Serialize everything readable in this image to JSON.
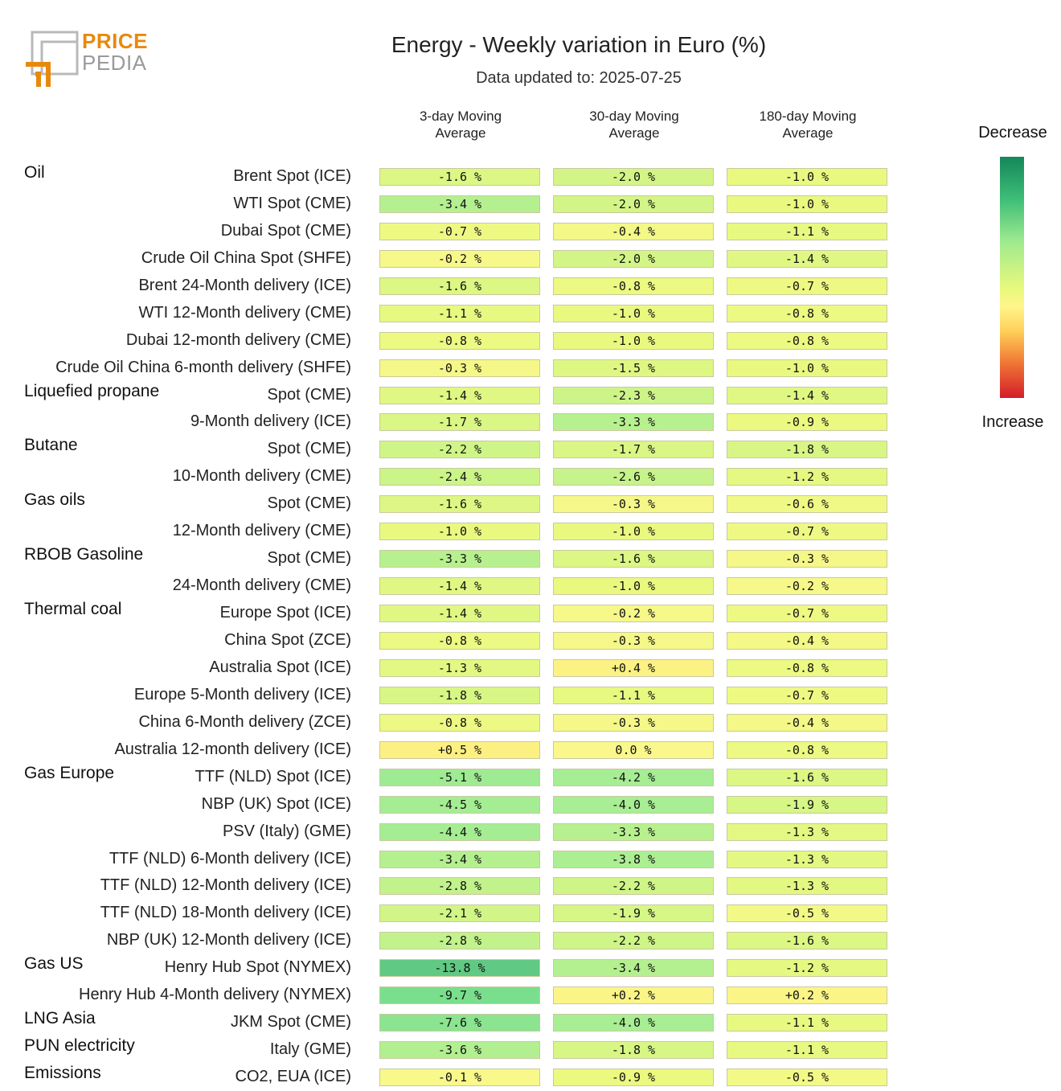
{
  "brand": {
    "line1": "PRICE",
    "line2": "PEDIA"
  },
  "chart_data": {
    "type": "table",
    "title": "Energy - Weekly variation in Euro (%)",
    "subtitle": "Data updated to: 2025-07-25",
    "columns": [
      {
        "l1": "3-day Moving",
        "l2": "Average"
      },
      {
        "l1": "30-day Moving",
        "l2": "Average"
      },
      {
        "l1": "180-day Moving",
        "l2": "Average"
      }
    ],
    "legend": {
      "top": "Decrease",
      "bottom": "Increase"
    },
    "colors": {
      "low": "#5fcf87",
      "mid": "#e9f97c",
      "high": "#fff58a",
      "strong": "#ffe57a"
    },
    "groups": [
      {
        "name": "Oil",
        "rows": [
          {
            "label": "Brent Spot (ICE)",
            "values": [
              -1.6,
              -2.0,
              -1.0
            ],
            "texts": [
              "-1.6 %",
              "-2.0 %",
              "-1.0 %"
            ]
          },
          {
            "label": "WTI Spot (CME)",
            "values": [
              -3.4,
              -2.0,
              -1.0
            ],
            "texts": [
              "-3.4 %",
              "-2.0 %",
              "-1.0 %"
            ]
          },
          {
            "label": "Dubai Spot (CME)",
            "values": [
              -0.7,
              -0.4,
              -1.1
            ],
            "texts": [
              "-0.7 %",
              "-0.4 %",
              "-1.1 %"
            ]
          },
          {
            "label": "Crude Oil China Spot (SHFE)",
            "values": [
              -0.2,
              -2.0,
              -1.4
            ],
            "texts": [
              "-0.2 %",
              "-2.0 %",
              "-1.4 %"
            ]
          },
          {
            "label": "Brent 24-Month delivery (ICE)",
            "values": [
              -1.6,
              -0.8,
              -0.7
            ],
            "texts": [
              "-1.6 %",
              "-0.8 %",
              "-0.7 %"
            ]
          },
          {
            "label": "WTI 12-Month delivery (CME)",
            "values": [
              -1.1,
              -1.0,
              -0.8
            ],
            "texts": [
              "-1.1 %",
              "-1.0 %",
              "-0.8 %"
            ]
          },
          {
            "label": "Dubai 12-month delivery (CME)",
            "values": [
              -0.8,
              -1.0,
              -0.8
            ],
            "texts": [
              "-0.8 %",
              "-1.0 %",
              "-0.8 %"
            ]
          },
          {
            "label": "Crude Oil China 6-month delivery (SHFE)",
            "values": [
              -0.3,
              -1.5,
              -1.0
            ],
            "texts": [
              "-0.3 %",
              "-1.5 %",
              "-1.0 %"
            ]
          }
        ]
      },
      {
        "name": "Liquefied propane",
        "rows": [
          {
            "label": "Spot (CME)",
            "values": [
              -1.4,
              -2.3,
              -1.4
            ],
            "texts": [
              "-1.4 %",
              "-2.3 %",
              "-1.4 %"
            ]
          },
          {
            "label": "9-Month delivery (ICE)",
            "values": [
              -1.7,
              -3.3,
              -0.9
            ],
            "texts": [
              "-1.7 %",
              "-3.3 %",
              "-0.9 %"
            ]
          }
        ]
      },
      {
        "name": "Butane",
        "rows": [
          {
            "label": "Spot (CME)",
            "values": [
              -2.2,
              -1.7,
              -1.8
            ],
            "texts": [
              "-2.2 %",
              "-1.7 %",
              "-1.8 %"
            ]
          },
          {
            "label": "10-Month delivery (CME)",
            "values": [
              -2.4,
              -2.6,
              -1.2
            ],
            "texts": [
              "-2.4 %",
              "-2.6 %",
              "-1.2 %"
            ]
          }
        ]
      },
      {
        "name": "Gas oils",
        "rows": [
          {
            "label": "Spot (CME)",
            "values": [
              -1.6,
              -0.3,
              -0.6
            ],
            "texts": [
              "-1.6 %",
              "-0.3 %",
              "-0.6 %"
            ]
          },
          {
            "label": "12-Month delivery (CME)",
            "values": [
              -1.0,
              -1.0,
              -0.7
            ],
            "texts": [
              "-1.0 %",
              "-1.0 %",
              "-0.7 %"
            ]
          }
        ]
      },
      {
        "name": "RBOB Gasoline",
        "rows": [
          {
            "label": "Spot (CME)",
            "values": [
              -3.3,
              -1.6,
              -0.3
            ],
            "texts": [
              "-3.3 %",
              "-1.6 %",
              "-0.3 %"
            ]
          },
          {
            "label": "24-Month delivery (CME)",
            "values": [
              -1.4,
              -1.0,
              -0.2
            ],
            "texts": [
              "-1.4 %",
              "-1.0 %",
              "-0.2 %"
            ]
          }
        ]
      },
      {
        "name": "Thermal coal",
        "rows": [
          {
            "label": "Europe Spot (ICE)",
            "values": [
              -1.4,
              -0.2,
              -0.7
            ],
            "texts": [
              "-1.4 %",
              "-0.2 %",
              "-0.7 %"
            ]
          },
          {
            "label": "China Spot (ZCE)",
            "values": [
              -0.8,
              -0.3,
              -0.4
            ],
            "texts": [
              "-0.8 %",
              "-0.3 %",
              "-0.4 %"
            ]
          },
          {
            "label": "Australia Spot (ICE)",
            "values": [
              -1.3,
              0.4,
              -0.8
            ],
            "texts": [
              "-1.3 %",
              "+0.4 %",
              "-0.8 %"
            ]
          },
          {
            "label": "Europe 5-Month delivery (ICE)",
            "values": [
              -1.8,
              -1.1,
              -0.7
            ],
            "texts": [
              "-1.8 %",
              "-1.1 %",
              "-0.7 %"
            ]
          },
          {
            "label": "China 6-Month delivery (ZCE)",
            "values": [
              -0.8,
              -0.3,
              -0.4
            ],
            "texts": [
              "-0.8 %",
              "-0.3 %",
              "-0.4 %"
            ]
          },
          {
            "label": "Australia 12-month delivery (ICE)",
            "values": [
              0.5,
              0.0,
              -0.8
            ],
            "texts": [
              "+0.5 %",
              "0.0 %",
              "-0.8 %"
            ]
          }
        ]
      },
      {
        "name": "Gas Europe",
        "rows": [
          {
            "label": "TTF (NLD) Spot (ICE)",
            "values": [
              -5.1,
              -4.2,
              -1.6
            ],
            "texts": [
              "-5.1 %",
              "-4.2 %",
              "-1.6 %"
            ]
          },
          {
            "label": "NBP (UK) Spot (ICE)",
            "values": [
              -4.5,
              -4.0,
              -1.9
            ],
            "texts": [
              "-4.5 %",
              "-4.0 %",
              "-1.9 %"
            ]
          },
          {
            "label": "PSV (Italy) (GME)",
            "values": [
              -4.4,
              -3.3,
              -1.3
            ],
            "texts": [
              "-4.4 %",
              "-3.3 %",
              "-1.3 %"
            ]
          },
          {
            "label": "TTF (NLD) 6-Month delivery (ICE)",
            "values": [
              -3.4,
              -3.8,
              -1.3
            ],
            "texts": [
              "-3.4 %",
              "-3.8 %",
              "-1.3 %"
            ]
          },
          {
            "label": "TTF (NLD) 12-Month delivery (ICE)",
            "values": [
              -2.8,
              -2.2,
              -1.3
            ],
            "texts": [
              "-2.8 %",
              "-2.2 %",
              "-1.3 %"
            ]
          },
          {
            "label": "TTF (NLD) 18-Month delivery (ICE)",
            "values": [
              -2.1,
              -1.9,
              -0.5
            ],
            "texts": [
              "-2.1 %",
              "-1.9 %",
              "-0.5 %"
            ]
          },
          {
            "label": "NBP (UK) 12-Month delivery (ICE)",
            "values": [
              -2.8,
              -2.2,
              -1.6
            ],
            "texts": [
              "-2.8 %",
              "-2.2 %",
              "-1.6 %"
            ]
          }
        ]
      },
      {
        "name": "Gas US",
        "rows": [
          {
            "label": "Henry Hub Spot (NYMEX)",
            "values": [
              -13.8,
              -3.4,
              -1.2
            ],
            "texts": [
              "-13.8 %",
              "-3.4 %",
              "-1.2 %"
            ]
          },
          {
            "label": "Henry Hub 4-Month delivery (NYMEX)",
            "values": [
              -9.7,
              0.2,
              0.2
            ],
            "texts": [
              "-9.7 %",
              "+0.2 %",
              "+0.2 %"
            ]
          }
        ]
      },
      {
        "name": "LNG Asia",
        "rows": [
          {
            "label": "JKM Spot (CME)",
            "values": [
              -7.6,
              -4.0,
              -1.1
            ],
            "texts": [
              "-7.6 %",
              "-4.0 %",
              "-1.1 %"
            ]
          }
        ]
      },
      {
        "name": "PUN electricity",
        "rows": [
          {
            "label": "Italy (GME)",
            "values": [
              -3.6,
              -1.8,
              -1.1
            ],
            "texts": [
              "-3.6 %",
              "-1.8 %",
              "-1.1 %"
            ]
          }
        ]
      },
      {
        "name": "Emissions",
        "rows": [
          {
            "label": "CO2, EUA (ICE)",
            "values": [
              -0.1,
              -0.9,
              -0.5
            ],
            "texts": [
              "-0.1 %",
              "-0.9 %",
              "-0.5 %"
            ]
          }
        ]
      }
    ]
  }
}
